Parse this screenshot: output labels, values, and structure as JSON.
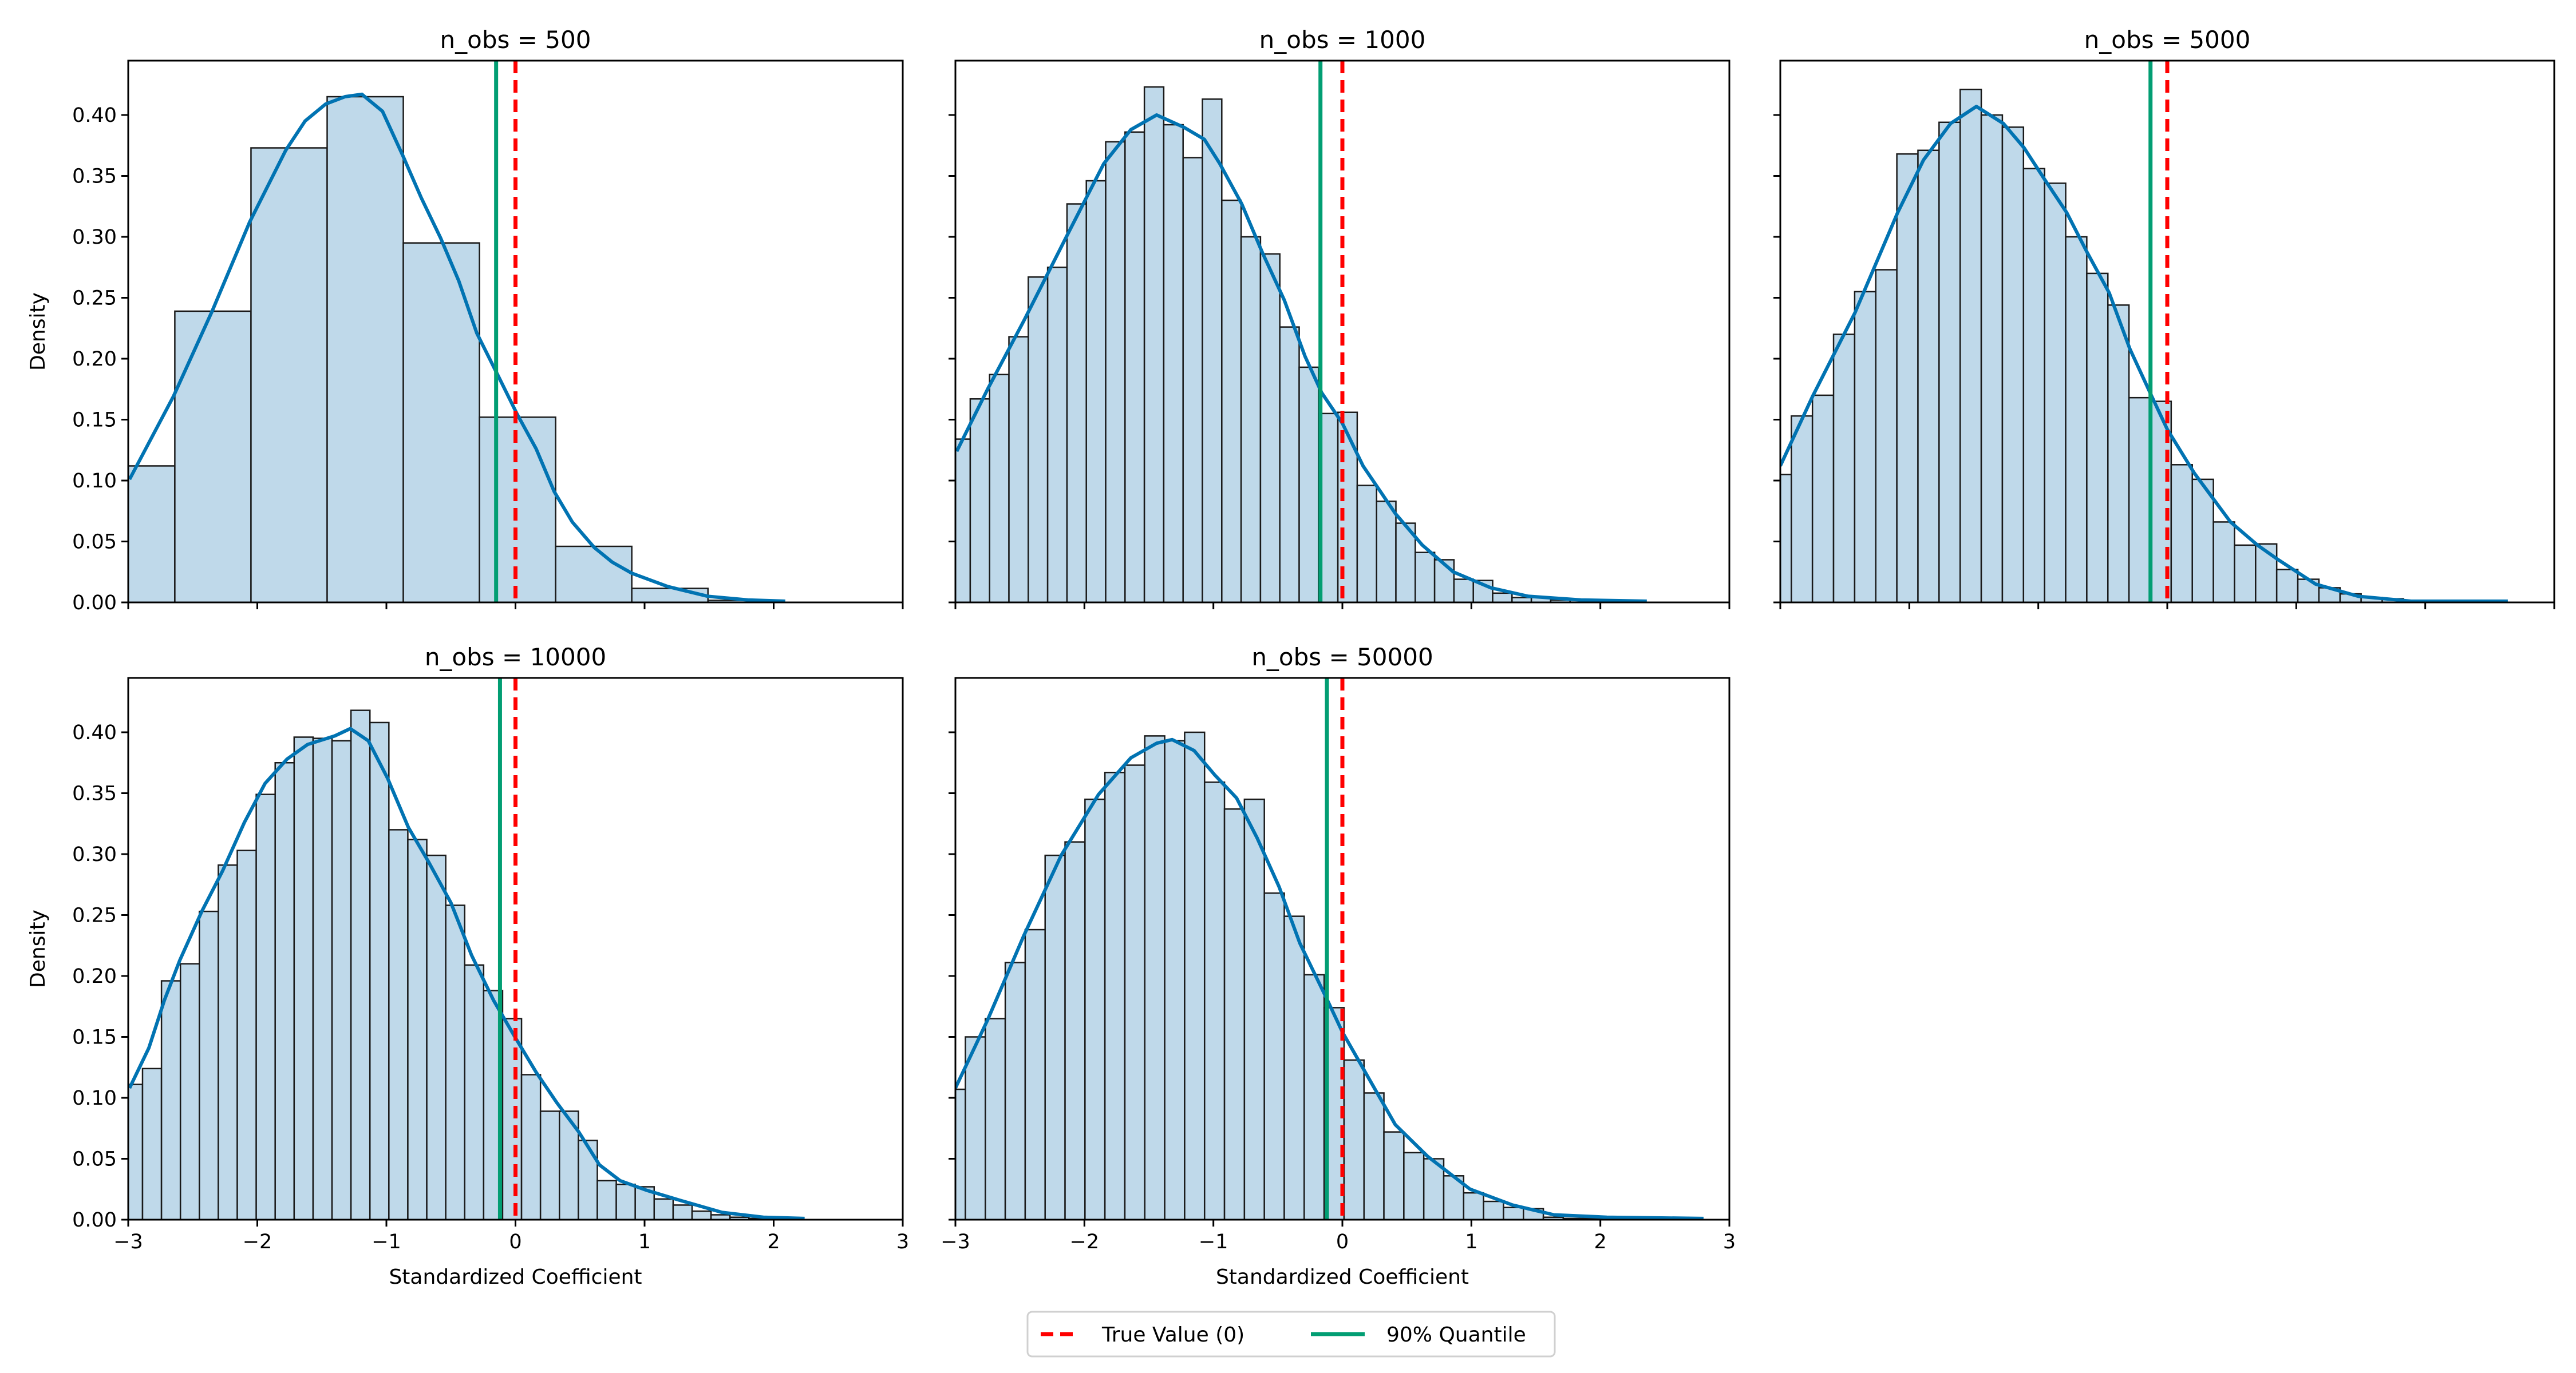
{
  "colors": {
    "bar_fill": "#bfd9ea",
    "bar_edge": "#1a1a1a",
    "kde": "#0173b2",
    "true_value": "#ff0000",
    "quantile": "#029e73"
  },
  "axes": {
    "xlabel": "Standardized Coefficient",
    "ylabel": "Density",
    "xlim": [
      -3,
      3
    ],
    "ylim": [
      0,
      0.4446
    ],
    "x_ticks": [
      -3,
      -2,
      -1,
      0,
      1,
      2,
      3
    ],
    "x_tick_labels": [
      "−3",
      "−2",
      "−1",
      "0",
      "1",
      "2",
      "3"
    ],
    "y_ticks": [
      0,
      0.05,
      0.1,
      0.15,
      0.2,
      0.25,
      0.3,
      0.35,
      0.4
    ],
    "y_tick_labels": [
      "0.00",
      "0.05",
      "0.10",
      "0.15",
      "0.20",
      "0.25",
      "0.30",
      "0.35",
      "0.40"
    ]
  },
  "legend": {
    "placement": "bottom-center",
    "items": [
      {
        "label": "True Value (0)",
        "style": "dashed",
        "color": "#ff0000"
      },
      {
        "label": "90% Quantile",
        "style": "solid",
        "color": "#029e73"
      }
    ]
  },
  "chart_data": [
    {
      "type": "bar",
      "title": "n_obs = 500",
      "true_value": 0,
      "quantile_90": -0.15,
      "bin_start": -3.229,
      "bin_width": 0.59,
      "values": [
        0.112,
        0.239,
        0.373,
        0.415,
        0.295,
        0.152,
        0.046,
        0.0115,
        0.0017
      ],
      "kde": {
        "x": [
          -2.99,
          -2.65,
          -2.35,
          -2.06,
          -1.78,
          -1.63,
          -1.47,
          -1.32,
          -1.19,
          -1.03,
          -0.87,
          -0.73,
          -0.58,
          -0.44,
          -0.3,
          -0.13,
          0.01,
          0.16,
          0.3,
          0.44,
          0.61,
          0.75,
          0.9,
          1.18,
          1.49,
          1.8,
          2.09
        ],
        "y": [
          0.101,
          0.169,
          0.239,
          0.312,
          0.371,
          0.395,
          0.409,
          0.415,
          0.417,
          0.403,
          0.366,
          0.332,
          0.299,
          0.264,
          0.221,
          0.185,
          0.155,
          0.126,
          0.091,
          0.066,
          0.045,
          0.033,
          0.024,
          0.013,
          0.005,
          0.002,
          0.001
        ]
      }
    },
    {
      "type": "bar",
      "title": "n_obs = 1000",
      "true_value": 0,
      "quantile_90": -0.17,
      "bin_start": -3.035,
      "bin_width": 0.15,
      "values": [
        0.134,
        0.167,
        0.187,
        0.218,
        0.267,
        0.275,
        0.327,
        0.346,
        0.378,
        0.386,
        0.423,
        0.392,
        0.365,
        0.413,
        0.33,
        0.3,
        0.286,
        0.226,
        0.193,
        0.155,
        0.156,
        0.096,
        0.083,
        0.065,
        0.041,
        0.035,
        0.019,
        0.018,
        0.0076,
        0.004,
        0.004,
        0.002,
        0.002,
        0.001
      ],
      "kde": {
        "x": [
          -2.99,
          -2.75,
          -2.47,
          -2.14,
          -1.85,
          -1.64,
          -1.44,
          -1.23,
          -1.07,
          -0.95,
          -0.78,
          -0.62,
          -0.45,
          -0.29,
          -0.16,
          0,
          0.16,
          0.41,
          0.62,
          0.86,
          1.15,
          1.44,
          1.85,
          2.36
        ],
        "y": [
          0.124,
          0.175,
          0.231,
          0.3,
          0.36,
          0.388,
          0.4,
          0.39,
          0.38,
          0.36,
          0.327,
          0.287,
          0.248,
          0.202,
          0.172,
          0.147,
          0.112,
          0.073,
          0.047,
          0.025,
          0.012,
          0.005,
          0.002,
          0.001
        ]
      }
    },
    {
      "type": "bar",
      "title": "n_obs = 5000",
      "true_value": 0,
      "quantile_90": -0.13,
      "bin_start": -3.078,
      "bin_width": 0.1636,
      "values": [
        0.105,
        0.153,
        0.17,
        0.22,
        0.255,
        0.273,
        0.368,
        0.371,
        0.394,
        0.421,
        0.4,
        0.39,
        0.356,
        0.344,
        0.3,
        0.27,
        0.244,
        0.168,
        0.165,
        0.113,
        0.101,
        0.066,
        0.047,
        0.048,
        0.027,
        0.019,
        0.012,
        0.007,
        0.004,
        0.003,
        0.0017,
        0.001
      ],
      "kde": {
        "x": [
          -3,
          -2.75,
          -2.42,
          -2.09,
          -1.89,
          -1.68,
          -1.48,
          -1.27,
          -1.11,
          -0.95,
          -0.78,
          -0.62,
          -0.45,
          -0.29,
          -0.12,
          0,
          0.21,
          0.49,
          0.7,
          0.86,
          1.15,
          1.48,
          1.89,
          2.64
        ],
        "y": [
          0.112,
          0.169,
          0.238,
          0.32,
          0.363,
          0.393,
          0.407,
          0.393,
          0.373,
          0.347,
          0.32,
          0.287,
          0.254,
          0.208,
          0.169,
          0.142,
          0.106,
          0.066,
          0.047,
          0.035,
          0.015,
          0.005,
          0.001,
          0.001
        ]
      }
    },
    {
      "type": "bar",
      "title": "n_obs = 10000",
      "true_value": 0,
      "quantile_90": -0.12,
      "bin_start": -3.036,
      "bin_width": 0.1468,
      "values": [
        0.111,
        0.124,
        0.196,
        0.21,
        0.253,
        0.291,
        0.303,
        0.349,
        0.375,
        0.396,
        0.395,
        0.393,
        0.418,
        0.408,
        0.32,
        0.312,
        0.299,
        0.258,
        0.209,
        0.188,
        0.165,
        0.119,
        0.089,
        0.089,
        0.065,
        0.032,
        0.029,
        0.027,
        0.017,
        0.012,
        0.007,
        0.004,
        0.002,
        0.001,
        0.001
      ],
      "kde": {
        "x": [
          -2.99,
          -2.84,
          -2.72,
          -2.6,
          -2.43,
          -2.27,
          -2.1,
          -1.94,
          -1.77,
          -1.61,
          -1.4,
          -1.28,
          -1.14,
          -0.99,
          -0.83,
          -0.67,
          -0.5,
          -0.34,
          -0.17,
          -0.01,
          0.16,
          0.32,
          0.49,
          0.65,
          0.81,
          1.02,
          1.27,
          1.6,
          1.92,
          2.24
        ],
        "y": [
          0.108,
          0.141,
          0.18,
          0.213,
          0.253,
          0.286,
          0.326,
          0.358,
          0.378,
          0.39,
          0.397,
          0.403,
          0.393,
          0.362,
          0.322,
          0.293,
          0.26,
          0.217,
          0.18,
          0.151,
          0.121,
          0.096,
          0.072,
          0.045,
          0.032,
          0.024,
          0.016,
          0.006,
          0.002,
          0.001
        ]
      }
    },
    {
      "type": "bar",
      "title": "n_obs = 50000",
      "true_value": 0,
      "quantile_90": -0.12,
      "bin_start": -3.077,
      "bin_width": 0.1545,
      "values": [
        0.107,
        0.15,
        0.165,
        0.211,
        0.238,
        0.299,
        0.31,
        0.345,
        0.367,
        0.373,
        0.397,
        0.393,
        0.4,
        0.359,
        0.337,
        0.345,
        0.268,
        0.249,
        0.201,
        0.174,
        0.131,
        0.104,
        0.072,
        0.055,
        0.05,
        0.036,
        0.022,
        0.015,
        0.01,
        0.009,
        0.002,
        0.001,
        0.001
      ],
      "kde": {
        "x": [
          -3,
          -2.75,
          -2.47,
          -2.18,
          -1.89,
          -1.64,
          -1.44,
          -1.32,
          -1.15,
          -0.99,
          -0.82,
          -0.66,
          -0.49,
          -0.33,
          -0.12,
          0,
          0.21,
          0.41,
          0.66,
          0.99,
          1.32,
          1.64,
          2.05,
          2.8
        ],
        "y": [
          0.108,
          0.164,
          0.233,
          0.299,
          0.349,
          0.379,
          0.391,
          0.394,
          0.385,
          0.365,
          0.346,
          0.313,
          0.273,
          0.227,
          0.181,
          0.154,
          0.115,
          0.078,
          0.052,
          0.025,
          0.012,
          0.004,
          0.002,
          0.001
        ]
      }
    }
  ]
}
